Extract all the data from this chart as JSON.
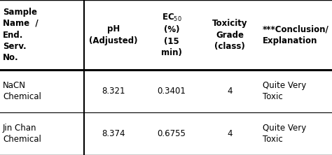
{
  "col_headers_line1": [
    "Sample",
    "pH",
    "EC₅₀",
    "Toxicity",
    "***Conclusion/"
  ],
  "col_headers_line2": [
    "Name  /",
    "(Adjusted)",
    "(%)",
    "Grade",
    "Explanation"
  ],
  "col_headers_line3": [
    "End.",
    "",
    "(15",
    "(class)",
    ""
  ],
  "col_headers_line4": [
    "Serv.",
    "",
    "min)",
    "",
    ""
  ],
  "col_headers_line5": [
    "No.",
    "",
    "",
    "",
    ""
  ],
  "rows": [
    [
      "NaCN\nChemical",
      "8.321",
      "0.3401",
      "4",
      "Quite Very\nToxic"
    ],
    [
      "Jin Chan\nChemical",
      "8.374",
      "0.6755",
      "4",
      "Quite Very\nToxic"
    ]
  ],
  "bg_color": "#ffffff",
  "text_color": "#000000",
  "header_fontsize": 8.5,
  "cell_fontsize": 8.5
}
